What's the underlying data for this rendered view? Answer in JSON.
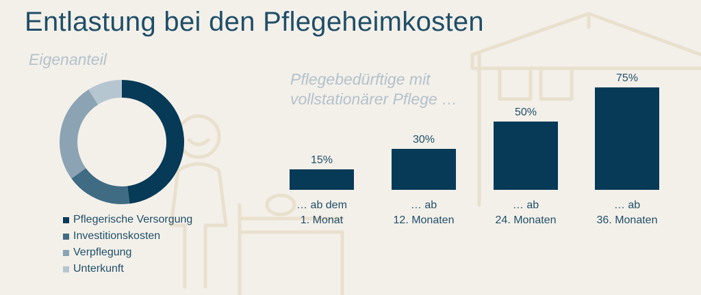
{
  "title": "Entlastung bei den Pflegeheimkosten",
  "left_subtitle": "Eigenanteil",
  "right_subtitle": [
    "Pflegebedürftige mit",
    "vollstationärer Pflege …"
  ],
  "colors": {
    "title": "#1f4e67",
    "bar": "#063a57",
    "subtitle": "#b3c1ca",
    "background": "#f3f0ea"
  },
  "chart_data": [
    {
      "type": "pie",
      "donut": true,
      "title": "Eigenanteil",
      "legend_position": "bottom-left",
      "slices": [
        {
          "label": "Pflegerische Versorgung",
          "value": 48,
          "color": "#063a57"
        },
        {
          "label": "Investitionskosten",
          "value": 17,
          "color": "#3f6b83"
        },
        {
          "label": "Verpflegung",
          "value": 26,
          "color": "#8ba3b3"
        },
        {
          "label": "Unterkunft",
          "value": 9,
          "color": "#b6c6d0"
        }
      ]
    },
    {
      "type": "bar",
      "categories": [
        [
          "… ab dem",
          "1. Monat"
        ],
        [
          "… ab",
          "12. Monaten"
        ],
        [
          "… ab",
          "24. Monaten"
        ],
        [
          "… ab",
          "36. Monaten"
        ]
      ],
      "values": [
        15,
        30,
        50,
        75
      ],
      "value_labels": [
        "15%",
        "30%",
        "50%",
        "75%"
      ],
      "ylim": [
        0,
        75
      ]
    }
  ]
}
